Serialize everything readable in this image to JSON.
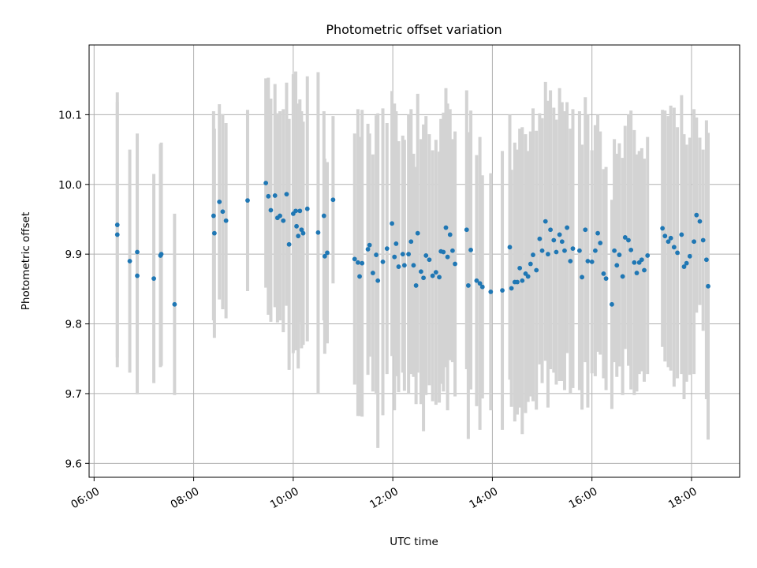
{
  "chart_data": {
    "type": "scatter",
    "title": "Photometric offset variation",
    "xlabel": "UTC time",
    "ylabel": "Photometric offset",
    "x_format": "HH:MM",
    "xlim": [
      "05:54",
      "18:58"
    ],
    "ylim": [
      9.58,
      10.2
    ],
    "x_ticks": [
      "06:00",
      "08:00",
      "10:00",
      "12:00",
      "14:00",
      "16:00",
      "18:00"
    ],
    "y_ticks": [
      9.6,
      9.7,
      9.8,
      9.9,
      10.0,
      10.1
    ],
    "grid": true,
    "marker_color": "#1f77b4",
    "errorbar_color": "#d3d3d3",
    "series": [
      {
        "x": [
          "06:28",
          "06:28",
          "06:43",
          "06:52",
          "06:52",
          "07:12",
          "07:20",
          "07:21",
          "07:37",
          "08:24",
          "08:25",
          "08:31",
          "08:35",
          "08:39",
          "09:05",
          "09:27",
          "09:30",
          "09:33",
          "09:38",
          "09:41",
          "09:44",
          "09:48",
          "09:52",
          "09:55",
          "10:00",
          "10:03",
          "10:04",
          "10:06",
          "10:08",
          "10:10",
          "10:12",
          "10:17",
          "10:30",
          "10:37",
          "10:38",
          "10:41",
          "10:48",
          "11:14",
          "11:18",
          "11:20",
          "11:23",
          "11:30",
          "11:32",
          "11:36",
          "11:40",
          "11:42",
          "11:48",
          "11:53",
          "11:59",
          "12:02",
          "12:04",
          "12:07",
          "12:12",
          "12:14",
          "12:19",
          "12:22",
          "12:25",
          "12:28",
          "12:30",
          "12:34",
          "12:37",
          "12:40",
          "12:44",
          "12:48",
          "12:52",
          "12:56",
          "12:58",
          "13:01",
          "13:04",
          "13:06",
          "13:09",
          "13:12",
          "13:15",
          "13:29",
          "13:31",
          "13:34",
          "13:41",
          "13:45",
          "13:48",
          "13:58",
          "14:12",
          "14:21",
          "14:23",
          "14:27",
          "14:30",
          "14:33",
          "14:36",
          "14:40",
          "14:43",
          "14:46",
          "14:49",
          "14:53",
          "14:57",
          "15:00",
          "15:04",
          "15:07",
          "15:10",
          "15:14",
          "15:17",
          "15:21",
          "15:24",
          "15:27",
          "15:30",
          "15:34",
          "15:37",
          "15:45",
          "15:48",
          "15:52",
          "15:55",
          "16:00",
          "16:04",
          "16:07",
          "16:10",
          "16:14",
          "16:17",
          "16:24",
          "16:27",
          "16:30",
          "16:33",
          "16:37",
          "16:40",
          "16:44",
          "16:47",
          "16:51",
          "16:54",
          "16:57",
          "17:00",
          "17:03",
          "17:07",
          "17:25",
          "17:28",
          "17:32",
          "17:35",
          "17:39",
          "17:43",
          "17:48",
          "17:51",
          "17:54",
          "17:58",
          "18:03",
          "18:06",
          "18:10",
          "18:14",
          "18:18",
          "18:20"
        ],
        "y": [
          9.942,
          9.928,
          9.89,
          9.903,
          9.869,
          9.865,
          9.898,
          9.9,
          9.828,
          9.955,
          9.93,
          9.975,
          9.961,
          9.948,
          9.977,
          10.002,
          9.983,
          9.963,
          9.984,
          9.952,
          9.955,
          9.948,
          9.986,
          9.914,
          9.958,
          9.962,
          9.94,
          9.926,
          9.962,
          9.935,
          9.93,
          9.965,
          9.931,
          9.955,
          9.897,
          9.902,
          9.978,
          9.893,
          9.888,
          9.868,
          9.887,
          9.907,
          9.913,
          9.873,
          9.899,
          9.862,
          9.889,
          9.908,
          9.944,
          9.896,
          9.915,
          9.882,
          9.9,
          9.884,
          9.9,
          9.918,
          9.884,
          9.855,
          9.93,
          9.875,
          9.866,
          9.898,
          9.892,
          9.869,
          9.874,
          9.867,
          9.904,
          9.903,
          9.938,
          9.896,
          9.928,
          9.905,
          9.886,
          9.935,
          9.855,
          9.906,
          9.862,
          9.858,
          9.853,
          9.846,
          9.848,
          9.91,
          9.851,
          9.86,
          9.86,
          9.88,
          9.862,
          9.872,
          9.868,
          9.886,
          9.899,
          9.877,
          9.922,
          9.905,
          9.947,
          9.9,
          9.935,
          9.92,
          9.903,
          9.928,
          9.918,
          9.905,
          9.938,
          9.89,
          9.908,
          9.905,
          9.867,
          9.935,
          9.89,
          9.889,
          9.905,
          9.93,
          9.916,
          9.872,
          9.865,
          9.828,
          9.905,
          9.884,
          9.899,
          9.868,
          9.924,
          9.92,
          9.906,
          9.888,
          9.873,
          9.888,
          9.892,
          9.877,
          9.898,
          9.937,
          9.926,
          9.918,
          9.923,
          9.91,
          9.902,
          9.928,
          9.882,
          9.887,
          9.897,
          9.918,
          9.956,
          9.947,
          9.92,
          9.892,
          9.854
        ],
        "yerr": [
          0.19,
          0.19,
          0.16,
          0.17,
          0.17,
          0.15,
          0.16,
          0.16,
          0.13,
          0.15,
          0.15,
          0.14,
          0.14,
          0.14,
          0.13,
          0.15,
          0.17,
          0.16,
          0.16,
          0.15,
          0.15,
          0.16,
          0.16,
          0.18,
          0.2,
          0.2,
          0.17,
          0.19,
          0.16,
          0.17,
          0.16,
          0.19,
          0.23,
          0.15,
          0.14,
          0.13,
          0.12,
          0.18,
          0.22,
          0.2,
          0.22,
          0.18,
          0.16,
          0.17,
          0.2,
          0.24,
          0.22,
          0.18,
          0.19,
          0.22,
          0.19,
          0.18,
          0.17,
          0.18,
          0.2,
          0.19,
          0.16,
          0.17,
          0.2,
          0.19,
          0.22,
          0.2,
          0.18,
          0.18,
          0.19,
          0.18,
          0.19,
          0.2,
          0.2,
          0.22,
          0.18,
          0.16,
          0.19,
          0.2,
          0.22,
          0.2,
          0.18,
          0.21,
          0.16,
          0.17,
          0.2,
          0.19,
          0.17,
          0.2,
          0.19,
          0.2,
          0.22,
          0.2,
          0.18,
          0.19,
          0.21,
          0.2,
          0.18,
          0.19,
          0.2,
          0.22,
          0.2,
          0.19,
          0.19,
          0.21,
          0.2,
          0.2,
          0.18,
          0.19,
          0.2,
          0.2,
          0.19,
          0.19,
          0.21,
          0.16,
          0.18,
          0.17,
          0.16,
          0.15,
          0.16,
          0.15,
          0.16,
          0.16,
          0.16,
          0.17,
          0.16,
          0.18,
          0.2,
          0.19,
          0.17,
          0.16,
          0.16,
          0.16,
          0.17,
          0.17,
          0.18,
          0.18,
          0.19,
          0.2,
          0.18,
          0.2,
          0.19,
          0.17,
          0.17,
          0.19,
          0.14,
          0.12,
          0.13,
          0.2,
          0.22
        ]
      }
    ]
  }
}
